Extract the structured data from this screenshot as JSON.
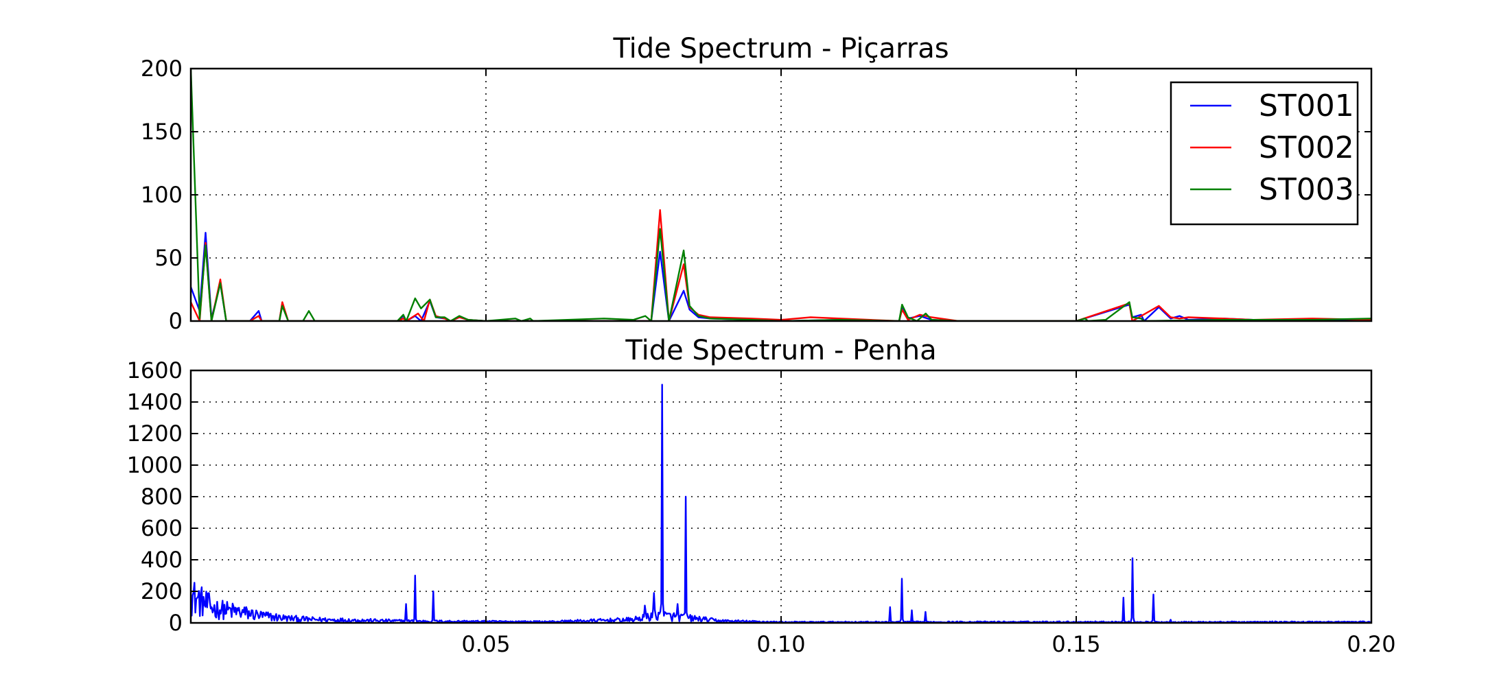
{
  "chart_data": [
    {
      "type": "line",
      "title": "Tide Spectrum - Piçarras",
      "xlim": [
        0.0,
        0.2
      ],
      "ylim": [
        0,
        200
      ],
      "x_ticks": [
        0.05,
        0.1,
        0.15
      ],
      "x_tick_labels": [
        "",
        "",
        ""
      ],
      "y_ticks": [
        0,
        50,
        100,
        150,
        200
      ],
      "y_tick_labels": [
        "0",
        "50",
        "100",
        "150",
        "200"
      ],
      "grid": true,
      "legend": "top-right",
      "series": [
        {
          "name": "ST001",
          "color": "#0000ff",
          "points": [
            [
              0.0,
              27
            ],
            [
              0.0015,
              8
            ],
            [
              0.0025,
              70
            ],
            [
              0.0035,
              2
            ],
            [
              0.005,
              30
            ],
            [
              0.006,
              0
            ],
            [
              0.01,
              0
            ],
            [
              0.0115,
              8
            ],
            [
              0.012,
              0
            ],
            [
              0.015,
              0
            ],
            [
              0.0155,
              14
            ],
            [
              0.0165,
              0
            ],
            [
              0.035,
              0
            ],
            [
              0.036,
              4
            ],
            [
              0.0365,
              0
            ],
            [
              0.038,
              4
            ],
            [
              0.039,
              0
            ],
            [
              0.0405,
              16
            ],
            [
              0.0415,
              3
            ],
            [
              0.043,
              2
            ],
            [
              0.044,
              0
            ],
            [
              0.0455,
              3
            ],
            [
              0.047,
              1
            ],
            [
              0.05,
              0
            ],
            [
              0.055,
              0
            ],
            [
              0.078,
              0
            ],
            [
              0.0795,
              55
            ],
            [
              0.081,
              0
            ],
            [
              0.0835,
              24
            ],
            [
              0.0845,
              9
            ],
            [
              0.086,
              3
            ],
            [
              0.088,
              2
            ],
            [
              0.095,
              1
            ],
            [
              0.1,
              0
            ],
            [
              0.11,
              1
            ],
            [
              0.12,
              0
            ],
            [
              0.1205,
              10
            ],
            [
              0.1215,
              2
            ],
            [
              0.1235,
              4
            ],
            [
              0.1255,
              1
            ],
            [
              0.13,
              0
            ],
            [
              0.15,
              0
            ],
            [
              0.159,
              13
            ],
            [
              0.1595,
              3
            ],
            [
              0.161,
              5
            ],
            [
              0.1615,
              0
            ],
            [
              0.164,
              11
            ],
            [
              0.166,
              2
            ],
            [
              0.1675,
              4
            ],
            [
              0.169,
              1
            ],
            [
              0.175,
              2
            ],
            [
              0.18,
              1
            ],
            [
              0.19,
              1
            ],
            [
              0.2,
              0
            ]
          ]
        },
        {
          "name": "ST002",
          "color": "#ff0000",
          "points": [
            [
              0.0,
              15
            ],
            [
              0.0015,
              0
            ],
            [
              0.0025,
              62
            ],
            [
              0.0035,
              0
            ],
            [
              0.005,
              33
            ],
            [
              0.006,
              0
            ],
            [
              0.01,
              0
            ],
            [
              0.0115,
              4
            ],
            [
              0.012,
              0
            ],
            [
              0.015,
              0
            ],
            [
              0.0155,
              15
            ],
            [
              0.0165,
              0
            ],
            [
              0.035,
              0
            ],
            [
              0.036,
              2
            ],
            [
              0.0365,
              0
            ],
            [
              0.0385,
              6
            ],
            [
              0.0395,
              0
            ],
            [
              0.0405,
              17
            ],
            [
              0.0415,
              4
            ],
            [
              0.043,
              2
            ],
            [
              0.044,
              0
            ],
            [
              0.0455,
              3
            ],
            [
              0.047,
              1
            ],
            [
              0.05,
              0
            ],
            [
              0.055,
              0
            ],
            [
              0.078,
              0
            ],
            [
              0.0795,
              88
            ],
            [
              0.081,
              0
            ],
            [
              0.0835,
              45
            ],
            [
              0.0845,
              11
            ],
            [
              0.086,
              5
            ],
            [
              0.088,
              3
            ],
            [
              0.095,
              2
            ],
            [
              0.1,
              1
            ],
            [
              0.105,
              3
            ],
            [
              0.11,
              2
            ],
            [
              0.12,
              0
            ],
            [
              0.1205,
              9
            ],
            [
              0.1215,
              1
            ],
            [
              0.1235,
              5
            ],
            [
              0.1255,
              3
            ],
            [
              0.13,
              0
            ],
            [
              0.15,
              0
            ],
            [
              0.159,
              14
            ],
            [
              0.1595,
              0
            ],
            [
              0.164,
              12
            ],
            [
              0.166,
              3
            ],
            [
              0.1675,
              2
            ],
            [
              0.169,
              3
            ],
            [
              0.175,
              2
            ],
            [
              0.18,
              1
            ],
            [
              0.19,
              2
            ],
            [
              0.2,
              1
            ]
          ]
        },
        {
          "name": "ST003",
          "color": "#008000",
          "points": [
            [
              0.0,
              200
            ],
            [
              0.0015,
              2
            ],
            [
              0.0025,
              60
            ],
            [
              0.0035,
              0
            ],
            [
              0.005,
              30
            ],
            [
              0.006,
              0
            ],
            [
              0.015,
              0
            ],
            [
              0.0155,
              12
            ],
            [
              0.0165,
              0
            ],
            [
              0.019,
              0
            ],
            [
              0.02,
              8
            ],
            [
              0.021,
              0
            ],
            [
              0.035,
              0
            ],
            [
              0.036,
              5
            ],
            [
              0.0365,
              0
            ],
            [
              0.038,
              18
            ],
            [
              0.039,
              10
            ],
            [
              0.0405,
              17
            ],
            [
              0.0415,
              3
            ],
            [
              0.043,
              3
            ],
            [
              0.044,
              0
            ],
            [
              0.0455,
              4
            ],
            [
              0.047,
              1
            ],
            [
              0.05,
              0
            ],
            [
              0.055,
              2
            ],
            [
              0.056,
              0
            ],
            [
              0.0575,
              2
            ],
            [
              0.058,
              0
            ],
            [
              0.07,
              2
            ],
            [
              0.075,
              1
            ],
            [
              0.077,
              4
            ],
            [
              0.078,
              0
            ],
            [
              0.0795,
              73
            ],
            [
              0.081,
              0
            ],
            [
              0.0835,
              56
            ],
            [
              0.0845,
              12
            ],
            [
              0.086,
              4
            ],
            [
              0.088,
              2
            ],
            [
              0.095,
              1
            ],
            [
              0.1,
              0
            ],
            [
              0.11,
              1
            ],
            [
              0.12,
              0
            ],
            [
              0.1205,
              13
            ],
            [
              0.1215,
              3
            ],
            [
              0.123,
              0
            ],
            [
              0.1245,
              6
            ],
            [
              0.1255,
              1
            ],
            [
              0.13,
              0
            ],
            [
              0.15,
              0
            ],
            [
              0.1515,
              2
            ],
            [
              0.152,
              0
            ],
            [
              0.155,
              1
            ],
            [
              0.159,
              15
            ],
            [
              0.1595,
              3
            ],
            [
              0.161,
              2
            ],
            [
              0.1615,
              0
            ],
            [
              0.175,
              1
            ],
            [
              0.18,
              1
            ],
            [
              0.19,
              1
            ],
            [
              0.2,
              2
            ]
          ]
        }
      ]
    },
    {
      "type": "line",
      "title": "Tide Spectrum - Penha",
      "xlim": [
        0.0,
        0.2
      ],
      "ylim": [
        0,
        1600
      ],
      "x_ticks": [
        0.05,
        0.1,
        0.15,
        0.2
      ],
      "x_tick_labels": [
        "0.05",
        "0.10",
        "0.15",
        "0.20"
      ],
      "y_ticks": [
        0,
        200,
        400,
        600,
        800,
        1000,
        1200,
        1400,
        1600
      ],
      "y_tick_labels": [
        "0",
        "200",
        "400",
        "600",
        "800",
        "1000",
        "1200",
        "1400",
        "1600"
      ],
      "grid": true,
      "series": [
        {
          "color": "#0000ff",
          "baseline": [
            [
              0.0,
              170
            ],
            [
              0.004,
              90
            ],
            [
              0.008,
              70
            ],
            [
              0.012,
              45
            ],
            [
              0.016,
              30
            ],
            [
              0.02,
              22
            ],
            [
              0.03,
              15
            ],
            [
              0.04,
              10
            ],
            [
              0.06,
              7
            ],
            [
              0.075,
              20
            ],
            [
              0.0785,
              50
            ],
            [
              0.086,
              25
            ],
            [
              0.09,
              12
            ],
            [
              0.1,
              5
            ],
            [
              0.15,
              6
            ],
            [
              0.17,
              5
            ],
            [
              0.2,
              6
            ]
          ],
          "peaks": [
            [
              0.0365,
              120
            ],
            [
              0.038,
              300
            ],
            [
              0.041,
              200
            ],
            [
              0.077,
              110
            ],
            [
              0.0785,
              190
            ],
            [
              0.0798,
              1510
            ],
            [
              0.0825,
              120
            ],
            [
              0.0838,
              800
            ],
            [
              0.1185,
              100
            ],
            [
              0.1205,
              280
            ],
            [
              0.1222,
              80
            ],
            [
              0.1245,
              70
            ],
            [
              0.158,
              160
            ],
            [
              0.1595,
              410
            ],
            [
              0.163,
              180
            ],
            [
              0.166,
              20
            ]
          ]
        }
      ]
    }
  ]
}
